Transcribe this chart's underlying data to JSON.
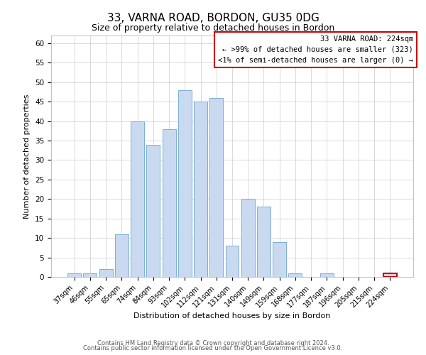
{
  "title": "33, VARNA ROAD, BORDON, GU35 0DG",
  "subtitle": "Size of property relative to detached houses in Bordon",
  "xlabel": "Distribution of detached houses by size in Bordon",
  "ylabel": "Number of detached properties",
  "categories": [
    "37sqm",
    "46sqm",
    "55sqm",
    "65sqm",
    "74sqm",
    "84sqm",
    "93sqm",
    "102sqm",
    "112sqm",
    "121sqm",
    "131sqm",
    "140sqm",
    "149sqm",
    "159sqm",
    "168sqm",
    "177sqm",
    "187sqm",
    "196sqm",
    "205sqm",
    "215sqm",
    "224sqm"
  ],
  "values": [
    1,
    1,
    2,
    11,
    40,
    34,
    38,
    48,
    45,
    46,
    8,
    20,
    18,
    9,
    1,
    0,
    1,
    0,
    0,
    0,
    1
  ],
  "bar_color": "#c9d9f0",
  "bar_edge_color": "#7bafd4",
  "highlight_bar_index": 20,
  "highlight_bar_edge_color": "#cc0000",
  "annotation_title": "33 VARNA ROAD: 224sqm",
  "annotation_line1": "← >99% of detached houses are smaller (323)",
  "annotation_line2": "<1% of semi-detached houses are larger (0) →",
  "box_edge_color": "#cc0000",
  "ylim": [
    0,
    62
  ],
  "yticks": [
    0,
    5,
    10,
    15,
    20,
    25,
    30,
    35,
    40,
    45,
    50,
    55,
    60
  ],
  "footer1": "Contains HM Land Registry data © Crown copyright and database right 2024.",
  "footer2": "Contains public sector information licensed under the Open Government Licence v3.0.",
  "bg_color": "#ffffff",
  "grid_color": "#cccccc",
  "title_fontsize": 11,
  "subtitle_fontsize": 9,
  "ylabel_fontsize": 8,
  "xlabel_fontsize": 8,
  "tick_fontsize": 7,
  "annotation_fontsize": 7.5,
  "footer_fontsize": 6
}
